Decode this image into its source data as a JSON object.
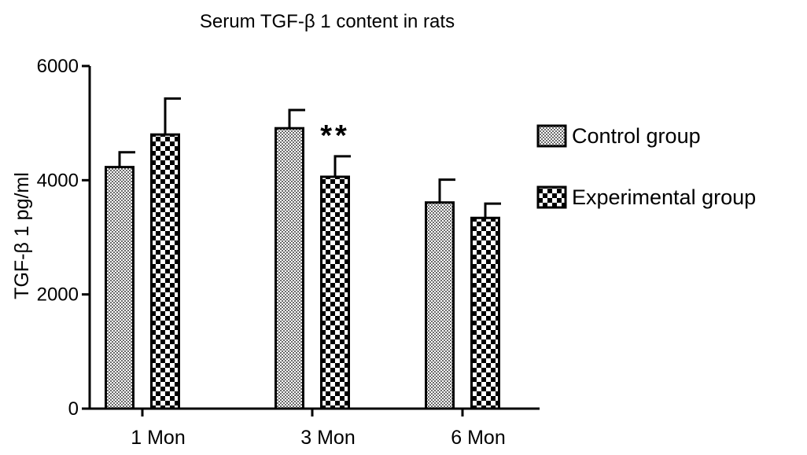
{
  "chart_data": {
    "type": "bar",
    "title": "Serum TGF-β 1 content in rats",
    "ylabel": "TGF-β 1 pg/ml",
    "xlabel": "",
    "categories": [
      "1 Mon",
      "3 Mon",
      "6 Mon"
    ],
    "ylim": [
      0,
      6000
    ],
    "yticks": [
      "0",
      "2000",
      "4000",
      "6000"
    ],
    "series": [
      {
        "name": "Control group",
        "values": [
          4230,
          4910,
          3610
        ],
        "errors": [
          260,
          320,
          400
        ],
        "pattern": "fine-mesh"
      },
      {
        "name": "Experimental group",
        "values": [
          4800,
          4060,
          3340
        ],
        "errors": [
          630,
          360,
          250
        ],
        "pattern": "checker"
      }
    ],
    "annotations": [
      {
        "text": "**",
        "category": "3 Mon",
        "series": "Experimental group"
      }
    ],
    "grid": false,
    "legend_position": "right"
  }
}
